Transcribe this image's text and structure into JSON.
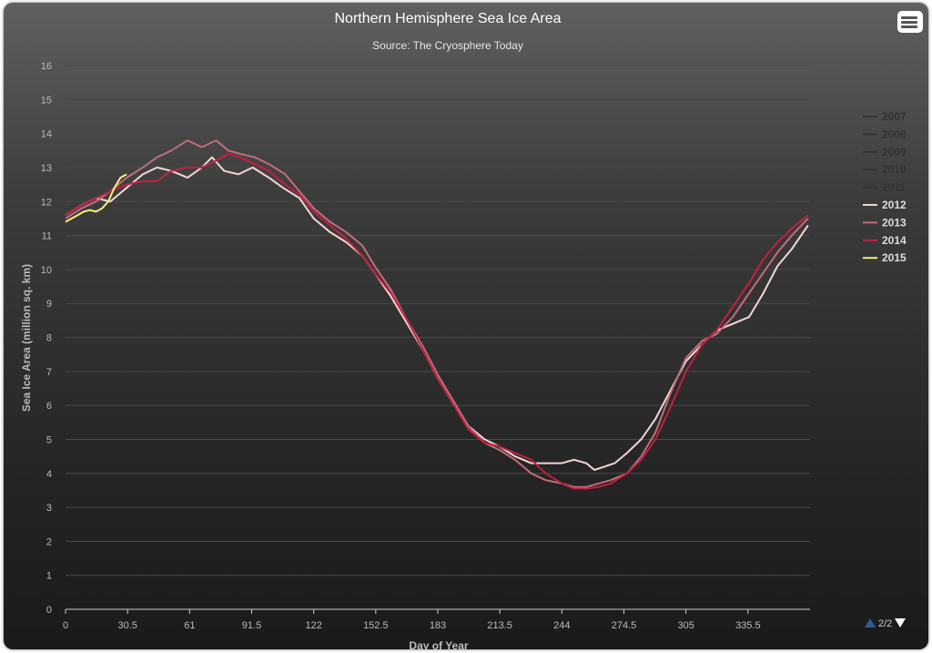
{
  "chart_data": {
    "type": "line",
    "title": "Northern Hemisphere Sea Ice Area",
    "subtitle": "Source: The Cryosphere Today",
    "xlabel": "Day of Year",
    "ylabel": "Sea Ice Area (million sq. km)",
    "xlim": [
      0,
      366
    ],
    "ylim": [
      0,
      16
    ],
    "x_ticks": [
      "0",
      "30.5",
      "61",
      "91.5",
      "122",
      "152.5",
      "183",
      "213.5",
      "244",
      "274.5",
      "305",
      "335.5"
    ],
    "y_ticks": [
      "0",
      "1",
      "2",
      "3",
      "4",
      "5",
      "6",
      "7",
      "8",
      "9",
      "10",
      "11",
      "12",
      "13",
      "14",
      "15",
      "16"
    ],
    "grid": true,
    "legend_position": "right",
    "legend_page": "2/2",
    "series": [
      {
        "name": "2007",
        "color": "#333333",
        "visible": false,
        "x": [],
        "y": []
      },
      {
        "name": "2008",
        "color": "#333333",
        "visible": false,
        "x": [],
        "y": []
      },
      {
        "name": "2009",
        "color": "#333333",
        "visible": false,
        "x": [],
        "y": []
      },
      {
        "name": "2010",
        "color": "#333333",
        "visible": false,
        "x": [],
        "y": []
      },
      {
        "name": "2011",
        "color": "#333333",
        "visible": false,
        "x": [],
        "y": []
      },
      {
        "name": "2012",
        "color": "#f2d6d6",
        "visible": true,
        "x": [
          0,
          8,
          15,
          22,
          30,
          38,
          45,
          52,
          60,
          67,
          72,
          78,
          85,
          92,
          100,
          107,
          115,
          122,
          130,
          138,
          146,
          152,
          160,
          168,
          176,
          183,
          191,
          198,
          206,
          213,
          221,
          229,
          236,
          244,
          250,
          256,
          260,
          265,
          270,
          276,
          283,
          290,
          297,
          305,
          313,
          320,
          328,
          336,
          343,
          350,
          357,
          365
        ],
        "y": [
          11.6,
          11.9,
          12.1,
          12.0,
          12.4,
          12.8,
          13.0,
          12.9,
          12.7,
          13.0,
          13.3,
          12.9,
          12.8,
          13.0,
          12.7,
          12.4,
          12.1,
          11.5,
          11.1,
          10.8,
          10.4,
          9.9,
          9.2,
          8.4,
          7.6,
          6.8,
          6.0,
          5.4,
          5.0,
          4.8,
          4.5,
          4.3,
          4.3,
          4.3,
          4.4,
          4.3,
          4.1,
          4.2,
          4.3,
          4.6,
          5.0,
          5.6,
          6.4,
          7.3,
          7.8,
          8.2,
          8.4,
          8.6,
          9.3,
          10.1,
          10.6,
          11.3
        ]
      },
      {
        "name": "2013",
        "color": "#c06d7c",
        "visible": true,
        "x": [
          0,
          8,
          15,
          22,
          30,
          38,
          45,
          52,
          60,
          67,
          74,
          80,
          86,
          93,
          100,
          108,
          115,
          122,
          130,
          138,
          146,
          152,
          160,
          168,
          176,
          183,
          191,
          198,
          206,
          213,
          221,
          229,
          236,
          244,
          250,
          256,
          262,
          268,
          276,
          283,
          290,
          297,
          305,
          313,
          320,
          328,
          336,
          343,
          350,
          357,
          365
        ],
        "y": [
          11.5,
          11.8,
          12.0,
          12.3,
          12.7,
          13.0,
          13.3,
          13.5,
          13.8,
          13.6,
          13.8,
          13.5,
          13.4,
          13.3,
          13.1,
          12.8,
          12.3,
          11.8,
          11.4,
          11.1,
          10.7,
          10.1,
          9.4,
          8.5,
          7.7,
          6.9,
          6.1,
          5.4,
          4.9,
          4.7,
          4.4,
          4.0,
          3.8,
          3.7,
          3.6,
          3.6,
          3.7,
          3.8,
          4.0,
          4.5,
          5.2,
          6.3,
          7.4,
          7.9,
          8.1,
          8.6,
          9.3,
          9.9,
          10.5,
          11.0,
          11.5
        ]
      },
      {
        "name": "2014",
        "color": "#c2203f",
        "visible": true,
        "x": [
          0,
          8,
          15,
          22,
          30,
          38,
          45,
          52,
          60,
          67,
          74,
          80,
          86,
          93,
          100,
          108,
          115,
          122,
          130,
          138,
          146,
          152,
          160,
          168,
          176,
          183,
          191,
          198,
          206,
          213,
          221,
          229,
          236,
          244,
          250,
          256,
          262,
          268,
          276,
          283,
          290,
          297,
          305,
          313,
          320,
          328,
          336,
          343,
          350,
          357,
          365
        ],
        "y": [
          11.6,
          11.9,
          12.1,
          12.3,
          12.5,
          12.6,
          12.6,
          12.9,
          13.0,
          13.0,
          13.2,
          13.4,
          13.3,
          13.1,
          12.9,
          12.5,
          12.2,
          11.7,
          11.3,
          10.9,
          10.4,
          9.9,
          9.3,
          8.5,
          7.6,
          6.8,
          6.0,
          5.3,
          4.9,
          4.8,
          4.6,
          4.4,
          4.0,
          3.7,
          3.55,
          3.55,
          3.6,
          3.7,
          4.0,
          4.4,
          5.0,
          5.9,
          7.0,
          7.8,
          8.2,
          8.9,
          9.6,
          10.3,
          10.8,
          11.2,
          11.6
        ]
      },
      {
        "name": "2015",
        "color": "#f5f07a",
        "visible": true,
        "x": [
          0,
          3,
          6,
          9,
          12,
          15,
          18,
          21,
          24,
          27,
          30
        ],
        "y": [
          11.4,
          11.5,
          11.6,
          11.7,
          11.75,
          11.7,
          11.8,
          12.0,
          12.4,
          12.7,
          12.8
        ]
      }
    ]
  },
  "ui": {
    "menu_icon": "hamburger-menu-icon",
    "legend_nav_up_icon": "triangle-up-icon",
    "legend_nav_down_icon": "triangle-down-icon"
  }
}
